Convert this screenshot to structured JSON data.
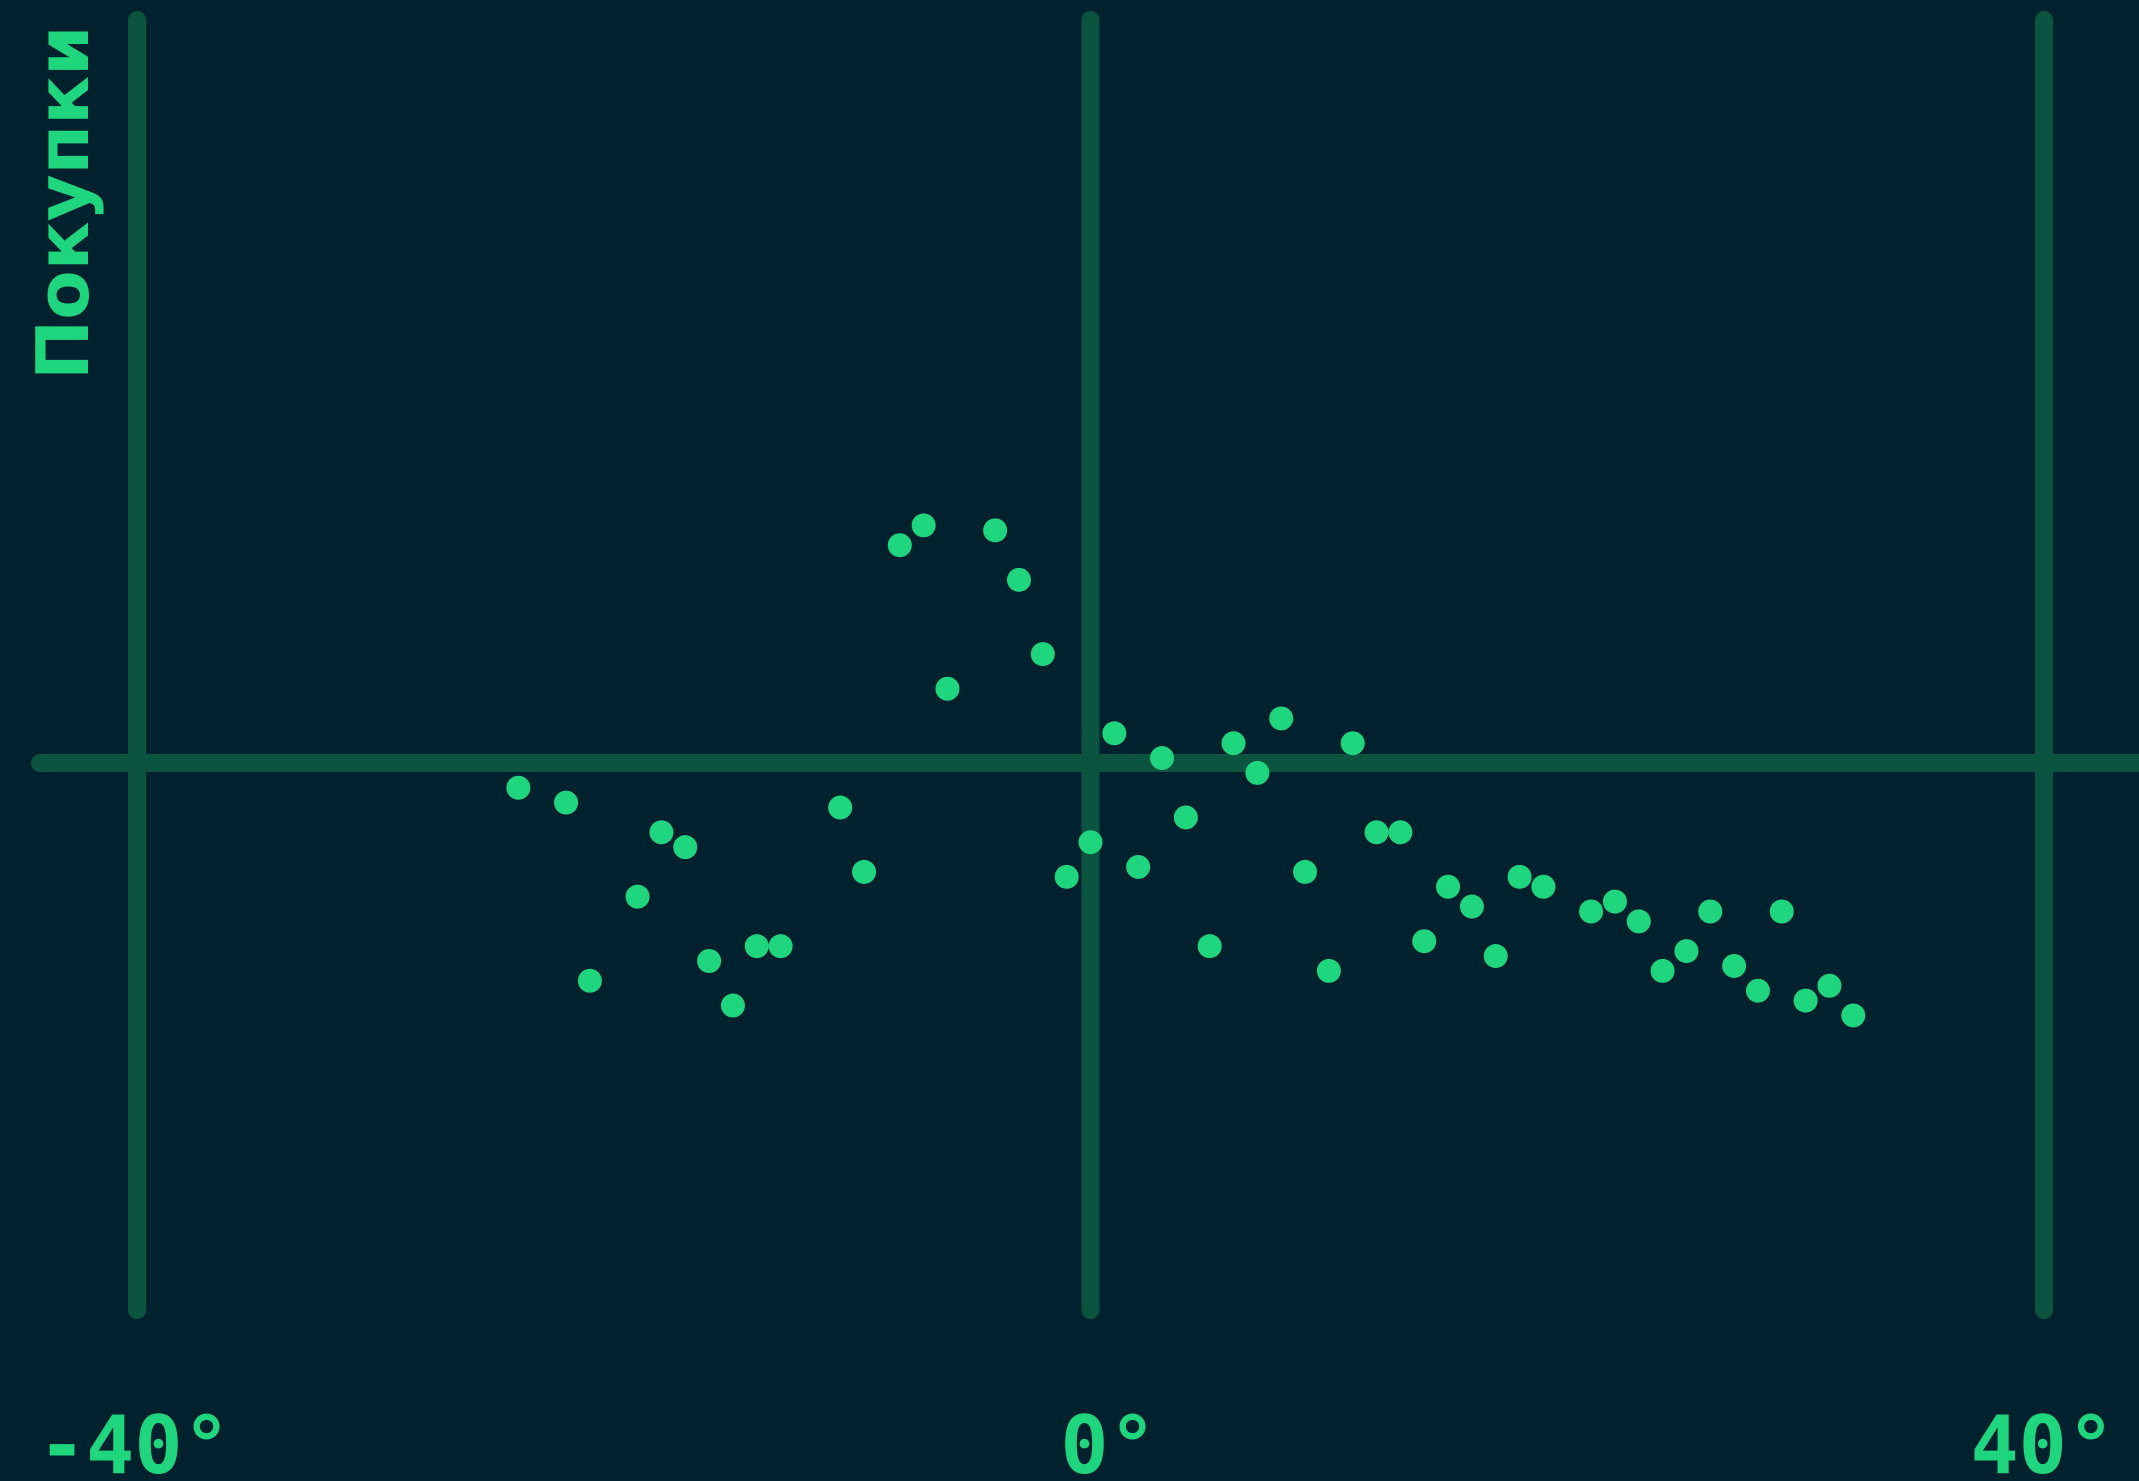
{
  "chart_data": {
    "type": "scatter",
    "title": "",
    "xlabel": "",
    "ylabel": "Покупки",
    "x_ticks": [
      {
        "value": -40,
        "label": "-40°"
      },
      {
        "value": 0,
        "label": "0°"
      },
      {
        "value": 40,
        "label": "40°"
      }
    ],
    "xlim": [
      -40,
      40
    ],
    "grid": true,
    "series": [
      {
        "points": [
          [
            -24.0,
            -0.5
          ],
          [
            -22.0,
            -0.8
          ],
          [
            -21.0,
            -4.4
          ],
          [
            -19.0,
            -2.7
          ],
          [
            -18.0,
            -1.4
          ],
          [
            -17.0,
            -1.7
          ],
          [
            -16.0,
            -4.0
          ],
          [
            -15.0,
            -4.9
          ],
          [
            -14.0,
            -3.7
          ],
          [
            -13.0,
            -3.7
          ],
          [
            -10.5,
            -0.9
          ],
          [
            -9.5,
            -2.2
          ],
          [
            -8.0,
            4.4
          ],
          [
            -7.0,
            4.8
          ],
          [
            -6.0,
            1.5
          ],
          [
            -4.0,
            4.7
          ],
          [
            -3.0,
            3.7
          ],
          [
            -2.0,
            2.2
          ],
          [
            -1.0,
            -2.3
          ],
          [
            0.0,
            -1.6
          ],
          [
            1.0,
            0.6
          ],
          [
            2.0,
            -2.1
          ],
          [
            3.0,
            0.1
          ],
          [
            4.0,
            -1.1
          ],
          [
            5.0,
            -3.7
          ],
          [
            6.0,
            0.4
          ],
          [
            7.0,
            -0.2
          ],
          [
            8.0,
            0.9
          ],
          [
            9.0,
            -2.2
          ],
          [
            10.0,
            -4.2
          ],
          [
            11.0,
            0.4
          ],
          [
            12.0,
            -1.4
          ],
          [
            13.0,
            -1.4
          ],
          [
            14.0,
            -3.6
          ],
          [
            15.0,
            -2.5
          ],
          [
            16.0,
            -2.9
          ],
          [
            17.0,
            -3.9
          ],
          [
            18.0,
            -2.3
          ],
          [
            19.0,
            -2.5
          ],
          [
            21.0,
            -3.0
          ],
          [
            22.0,
            -2.8
          ],
          [
            23.0,
            -3.2
          ],
          [
            24.0,
            -4.2
          ],
          [
            25.0,
            -3.8
          ],
          [
            26.0,
            -3.0
          ],
          [
            27.0,
            -4.1
          ],
          [
            28.0,
            -4.6
          ],
          [
            29.0,
            -3.0
          ],
          [
            30.0,
            -4.8
          ],
          [
            31.0,
            -4.5
          ],
          [
            32.0,
            -5.1
          ]
        ]
      }
    ]
  }
}
